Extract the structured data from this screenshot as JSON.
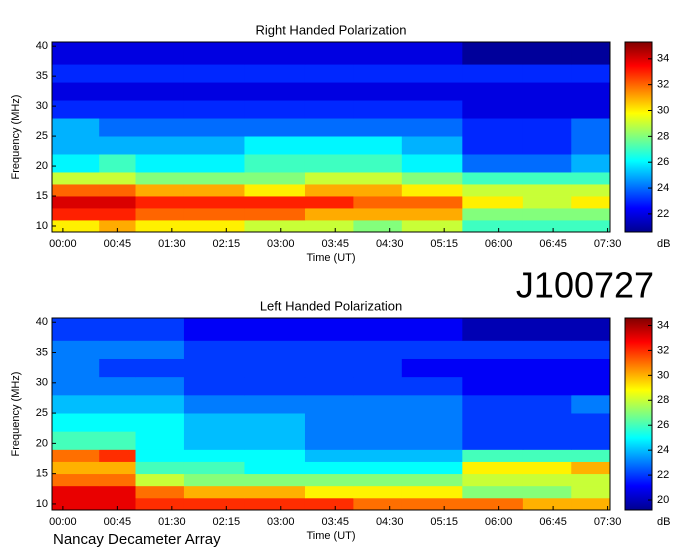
{
  "event": "J100727",
  "footer": "Nancay Decameter Array",
  "chart_data": [
    {
      "type": "heatmap",
      "title": "Right Handed Polarization",
      "xlabel": "Time (UT)",
      "ylabel": "Frequency (MHz)",
      "colorbar_label": "dB",
      "xlim": [
        -9,
        452
      ],
      "ylim": [
        9,
        40.7
      ],
      "xticks": [
        {
          "value": 0,
          "label": "00:00"
        },
        {
          "value": 45,
          "label": "00:45"
        },
        {
          "value": 90,
          "label": "01:30"
        },
        {
          "value": 135,
          "label": "02:15"
        },
        {
          "value": 180,
          "label": "03:00"
        },
        {
          "value": 225,
          "label": "03:45"
        },
        {
          "value": 270,
          "label": "04:30"
        },
        {
          "value": 315,
          "label": "05:15"
        },
        {
          "value": 360,
          "label": "06:00"
        },
        {
          "value": 405,
          "label": "06:45"
        },
        {
          "value": 450,
          "label": "07:30"
        }
      ],
      "yticks": [
        10,
        15,
        20,
        25,
        30,
        35,
        40
      ],
      "zlim": [
        20.6,
        35.3
      ],
      "zticks": [
        22,
        24,
        26,
        28,
        30,
        32,
        34
      ],
      "x_edges": [
        -9,
        30,
        60,
        100,
        150,
        200,
        240,
        280,
        330,
        380,
        420,
        452
      ],
      "y_edges": [
        9,
        11,
        13,
        15,
        17,
        19,
        22,
        25,
        28,
        31,
        34,
        37,
        40.7
      ],
      "z": [
        [
          30,
          31,
          30,
          30,
          29,
          29,
          28,
          29,
          27,
          27,
          27
        ],
        [
          33,
          33,
          32,
          32,
          32,
          31,
          31,
          31,
          28,
          28,
          28
        ],
        [
          34,
          34,
          33,
          33,
          33,
          33,
          32,
          32,
          30,
          29,
          30
        ],
        [
          32,
          32,
          31,
          31,
          30,
          31,
          31,
          30,
          29,
          29,
          29
        ],
        [
          29,
          29,
          28,
          28,
          28,
          29,
          29,
          28,
          27,
          27,
          27
        ],
        [
          26,
          27,
          26,
          26,
          27,
          27,
          27,
          26,
          24,
          24,
          25
        ],
        [
          25,
          25,
          25,
          25,
          26,
          26,
          26,
          25,
          23,
          23,
          24
        ],
        [
          25,
          24,
          24,
          24,
          24,
          24,
          24,
          24,
          23,
          23,
          24
        ],
        [
          23,
          23,
          23,
          23,
          23,
          23,
          23,
          23,
          22,
          22,
          22
        ],
        [
          22,
          22,
          22,
          22,
          22,
          22,
          22,
          22,
          22,
          22,
          22
        ],
        [
          23,
          23,
          23,
          23,
          23,
          23,
          23,
          23,
          23,
          23,
          23
        ],
        [
          22,
          22,
          22,
          22,
          22,
          22,
          22,
          22,
          21,
          21,
          21
        ]
      ]
    },
    {
      "type": "heatmap",
      "title": "Left Handed Polarization",
      "xlabel": "Time (UT)",
      "ylabel": "Frequency (MHz)",
      "colorbar_label": "dB",
      "xlim": [
        -9,
        452
      ],
      "ylim": [
        9,
        40.7
      ],
      "xticks": [
        {
          "value": 0,
          "label": "00:00"
        },
        {
          "value": 45,
          "label": "00:45"
        },
        {
          "value": 90,
          "label": "01:30"
        },
        {
          "value": 135,
          "label": "02:15"
        },
        {
          "value": 180,
          "label": "03:00"
        },
        {
          "value": 225,
          "label": "03:45"
        },
        {
          "value": 270,
          "label": "04:30"
        },
        {
          "value": 315,
          "label": "05:15"
        },
        {
          "value": 360,
          "label": "06:00"
        },
        {
          "value": 405,
          "label": "06:45"
        },
        {
          "value": 450,
          "label": "07:30"
        }
      ],
      "yticks": [
        10,
        15,
        20,
        25,
        30,
        35,
        40
      ],
      "zlim": [
        19.2,
        34.6
      ],
      "zticks": [
        20,
        22,
        24,
        26,
        28,
        30,
        32,
        34
      ],
      "x_edges": [
        -9,
        30,
        60,
        100,
        150,
        200,
        240,
        280,
        330,
        380,
        420,
        452
      ],
      "y_edges": [
        9,
        11,
        13,
        15,
        17,
        19,
        22,
        25,
        28,
        31,
        34,
        37,
        40.7
      ],
      "z": [
        [
          33,
          33,
          32,
          32,
          32,
          32,
          31,
          31,
          31,
          30,
          30
        ],
        [
          33,
          33,
          31,
          30,
          30,
          29,
          29,
          29,
          27,
          27,
          28
        ],
        [
          31,
          31,
          28,
          27,
          27,
          27,
          27,
          27,
          28,
          28,
          28
        ],
        [
          30,
          30,
          26,
          26,
          25,
          25,
          25,
          25,
          29,
          29,
          30
        ],
        [
          31,
          32,
          25,
          25,
          25,
          24,
          24,
          24,
          26,
          26,
          26
        ],
        [
          26,
          26,
          25,
          24,
          24,
          23,
          23,
          23,
          22,
          22,
          22
        ],
        [
          25,
          25,
          25,
          24,
          24,
          23,
          23,
          23,
          22,
          22,
          22
        ],
        [
          24,
          24,
          24,
          23,
          23,
          23,
          23,
          23,
          22,
          22,
          23
        ],
        [
          23,
          23,
          23,
          22,
          22,
          22,
          22,
          22,
          21,
          21,
          21
        ],
        [
          23,
          22,
          22,
          22,
          22,
          22,
          22,
          21,
          21,
          21,
          21
        ],
        [
          23,
          23,
          23,
          22,
          22,
          22,
          22,
          22,
          22,
          22,
          22
        ],
        [
          22,
          22,
          22,
          21,
          21,
          21,
          21,
          21,
          20,
          20,
          20
        ]
      ]
    }
  ]
}
